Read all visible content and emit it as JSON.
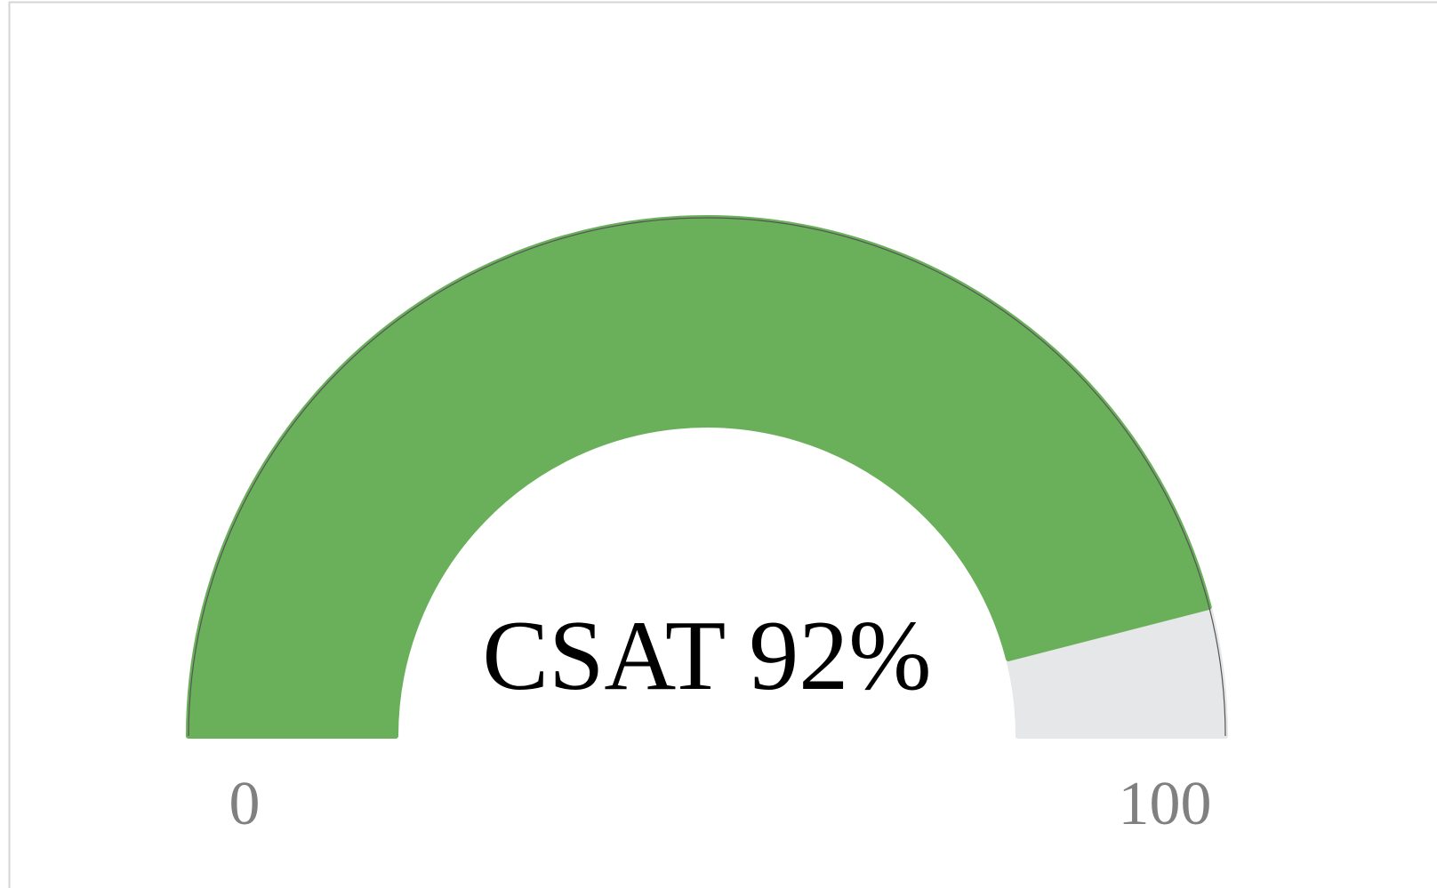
{
  "chart_data": {
    "type": "gauge",
    "values": [
      92
    ],
    "value_labels": [
      "CSAT 92%"
    ],
    "color": "#6ab05b",
    "track_color": "#e6e7e8",
    "ylim": [
      0,
      100
    ],
    "yticks": [
      0,
      100
    ]
  }
}
